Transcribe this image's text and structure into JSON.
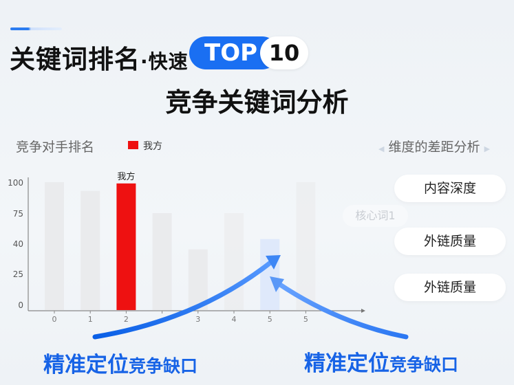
{
  "header": {
    "title": "关键词排名",
    "title_suffix": "·快速",
    "top_label": "TOP",
    "top_number": "10",
    "subtitle": "竞争关键词分析"
  },
  "colors": {
    "accent": "#1a6ff2",
    "ours": "#ee1111",
    "competitor": "#e9eaeb",
    "highlight": "#dde8fb"
  },
  "chart_data": {
    "type": "bar",
    "title": "竞争对手排名",
    "legend": [
      {
        "name": "我方",
        "color": "#ee1111"
      }
    ],
    "legend_placement": "top",
    "y_ticks": [
      0,
      25,
      40,
      75,
      100
    ],
    "categories": [
      "0",
      "1",
      "2",
      "",
      "3",
      "4",
      "5",
      "5"
    ],
    "values": [
      100,
      93,
      99,
      75,
      37,
      75,
      45,
      100
    ],
    "highlight_index": 2,
    "gap_index": 6,
    "data_labels": {
      "2": "我方"
    },
    "grid": false
  },
  "dimensions": {
    "title": "维度的差距分析",
    "keyword": "核心词1",
    "items": [
      "内容深度",
      "外链质量",
      "外链质量"
    ]
  },
  "callouts": [
    {
      "main": "精准定位",
      "sub": "竞争缺口"
    },
    {
      "main": "精准定位",
      "sub": "竞争缺口"
    }
  ],
  "icons": [
    "chevron-left-icon",
    "chevron-right-icon",
    "curved-arrow-icon"
  ]
}
